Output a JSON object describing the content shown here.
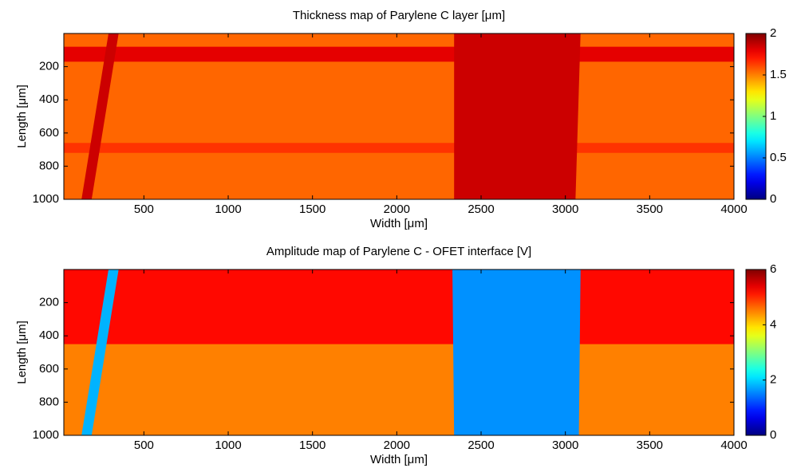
{
  "chart_data": [
    {
      "type": "heatmap",
      "title": "Thickness map of Parylene C layer [μm]",
      "xlabel": "Width [μm]",
      "ylabel": "Length [μm]",
      "xlim": [
        25,
        4000
      ],
      "xticks": [
        500,
        1000,
        1500,
        2000,
        2500,
        3000,
        3500,
        4000
      ],
      "ylim": [
        0,
        1000
      ],
      "yticks": [
        200,
        400,
        600,
        800,
        1000
      ],
      "clim": [
        0,
        2
      ],
      "cticks": [
        0,
        0.5,
        1,
        1.5,
        2
      ],
      "colormap": "jet",
      "background": 1.55,
      "regions": [
        {
          "polygon": [
            [
              25,
              80
            ],
            [
              4000,
              80
            ],
            [
              4000,
              170
            ],
            [
              25,
              170
            ]
          ],
          "value": 1.8
        },
        {
          "polygon": [
            [
              25,
              660
            ],
            [
              4000,
              660
            ],
            [
              4000,
              720
            ],
            [
              25,
              720
            ]
          ],
          "value": 1.65
        },
        {
          "polygon": [
            [
              2340,
              0
            ],
            [
              3090,
              0
            ],
            [
              3060,
              1000
            ],
            [
              2340,
              1000
            ]
          ],
          "value": 1.85
        },
        {
          "polygon": [
            [
              290,
              0
            ],
            [
              350,
              0
            ],
            [
              190,
              1000
            ],
            [
              130,
              1000
            ]
          ],
          "value": 1.85
        }
      ]
    },
    {
      "type": "heatmap",
      "title": "Amplitude map of Parylene C - OFET interface [V]",
      "xlabel": "Width [μm]",
      "ylabel": "Length [μm]",
      "xlim": [
        25,
        4000
      ],
      "xticks": [
        500,
        1000,
        1500,
        2000,
        2500,
        3000,
        3500,
        4000
      ],
      "ylim": [
        0,
        1000
      ],
      "yticks": [
        200,
        400,
        600,
        800,
        1000
      ],
      "clim": [
        0,
        6
      ],
      "cticks": [
        0,
        2,
        4,
        6
      ],
      "colormap": "jet",
      "background": 4.5,
      "regions": [
        {
          "polygon": [
            [
              25,
              0
            ],
            [
              4000,
              0
            ],
            [
              4000,
              450
            ],
            [
              25,
              450
            ]
          ],
          "value": 5.2
        },
        {
          "polygon": [
            [
              2330,
              0
            ],
            [
              3090,
              0
            ],
            [
              3080,
              1000
            ],
            [
              2340,
              1000
            ]
          ],
          "value": 1.6
        },
        {
          "polygon": [
            [
              290,
              0
            ],
            [
              350,
              0
            ],
            [
              190,
              1000
            ],
            [
              130,
              1000
            ]
          ],
          "value": 1.8
        }
      ]
    }
  ]
}
